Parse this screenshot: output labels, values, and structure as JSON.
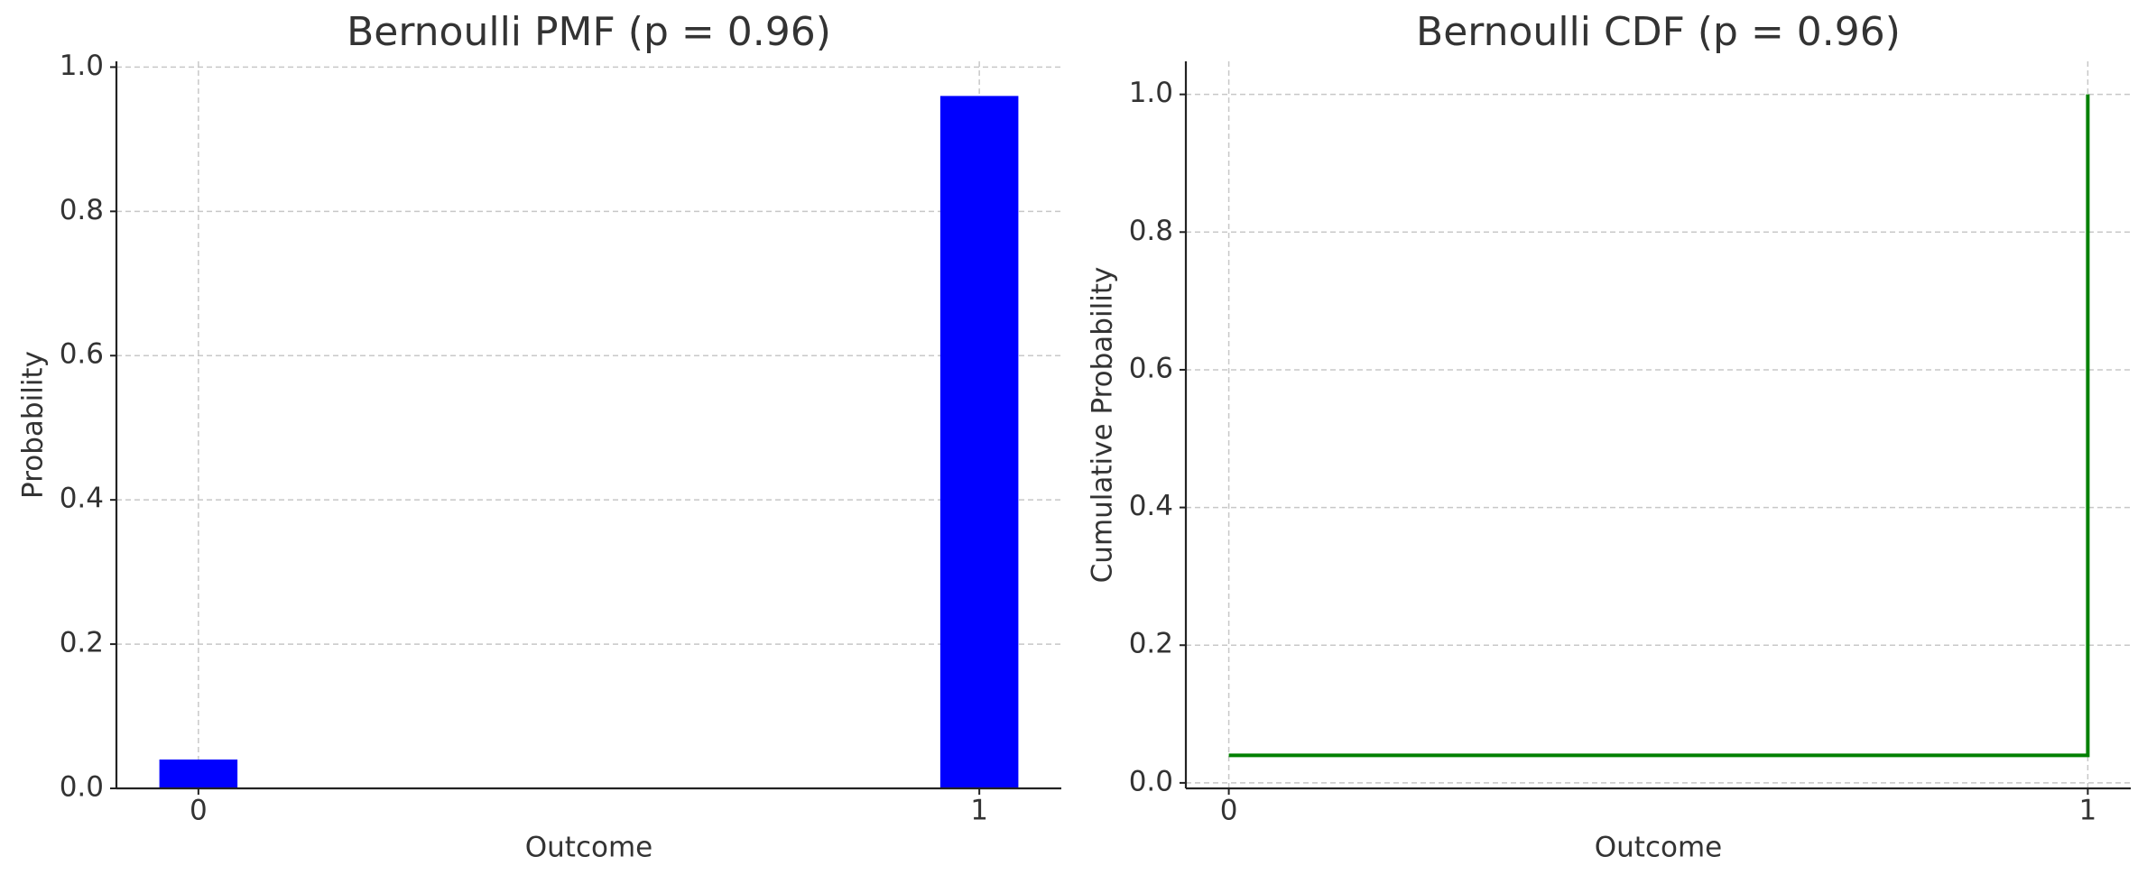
{
  "chart_data": [
    {
      "type": "bar",
      "title": "Bernoulli PMF (p = 0.96)",
      "xlabel": "Outcome",
      "ylabel": "Probability",
      "x": [
        0,
        1
      ],
      "values": [
        0.04,
        0.96
      ],
      "color": "#0000ff",
      "xlim": [
        -0.105,
        1.105
      ],
      "xticks": [
        0,
        1
      ],
      "ylim": [
        0,
        1.008
      ],
      "yticks": [
        {
          "value": 0,
          "label": "0.0"
        },
        0.2,
        0.4,
        0.6,
        0.8,
        {
          "value": 1,
          "label": "1.0"
        }
      ],
      "grid": true
    },
    {
      "type": "line",
      "title": "Bernoulli CDF (p = 0.96)",
      "xlabel": "Outcome",
      "ylabel": "Cumulative Probability",
      "x": [
        0,
        1,
        1
      ],
      "values": [
        0.04,
        0.04,
        1.0
      ],
      "color": "#008000",
      "xlim": [
        -0.05,
        1.05
      ],
      "xticks": [
        0,
        1
      ],
      "ylim": [
        -0.008,
        1.048
      ],
      "yticks": [
        {
          "value": 0,
          "label": "0.0"
        },
        0.2,
        0.4,
        0.6,
        0.8,
        {
          "value": 1,
          "label": "1.0"
        }
      ],
      "grid": true
    }
  ]
}
